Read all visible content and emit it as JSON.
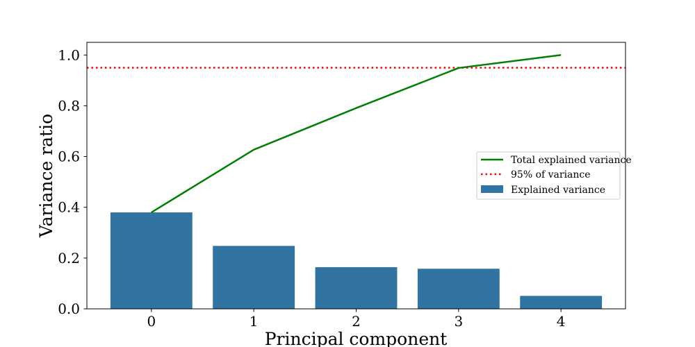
{
  "chart_data": {
    "type": "bar",
    "categories": [
      "0",
      "1",
      "2",
      "3",
      "4"
    ],
    "x": [
      0,
      1,
      2,
      3,
      4
    ],
    "series": [
      {
        "name": "Explained variance",
        "kind": "bar",
        "values": [
          0.38,
          0.248,
          0.164,
          0.158,
          0.051
        ],
        "color": "#3274a1"
      },
      {
        "name": "Total explained variance",
        "kind": "line",
        "values": [
          0.38,
          0.627,
          0.791,
          0.949,
          1.0
        ],
        "color": "#008000"
      }
    ],
    "reference_line": {
      "name": "95% of variance",
      "y": 0.95,
      "color": "#ff0000",
      "style": "dotted"
    },
    "title": "",
    "xlabel": "Principal component",
    "ylabel": "Variance ratio",
    "xlim": [
      -0.63,
      4.63
    ],
    "ylim": [
      0,
      1.05
    ],
    "yticks": [
      0.0,
      0.2,
      0.4,
      0.6,
      0.8,
      1.0
    ],
    "ytick_labels": [
      "0.0",
      "0.2",
      "0.4",
      "0.6",
      "0.8",
      "1.0"
    ],
    "xticks": [
      0,
      1,
      2,
      3,
      4
    ],
    "xtick_labels": [
      "0",
      "1",
      "2",
      "3",
      "4"
    ],
    "grid": false,
    "legend": {
      "placement": "center-right",
      "entries": [
        "Total explained variance",
        "95% of variance",
        "Explained variance"
      ]
    }
  }
}
